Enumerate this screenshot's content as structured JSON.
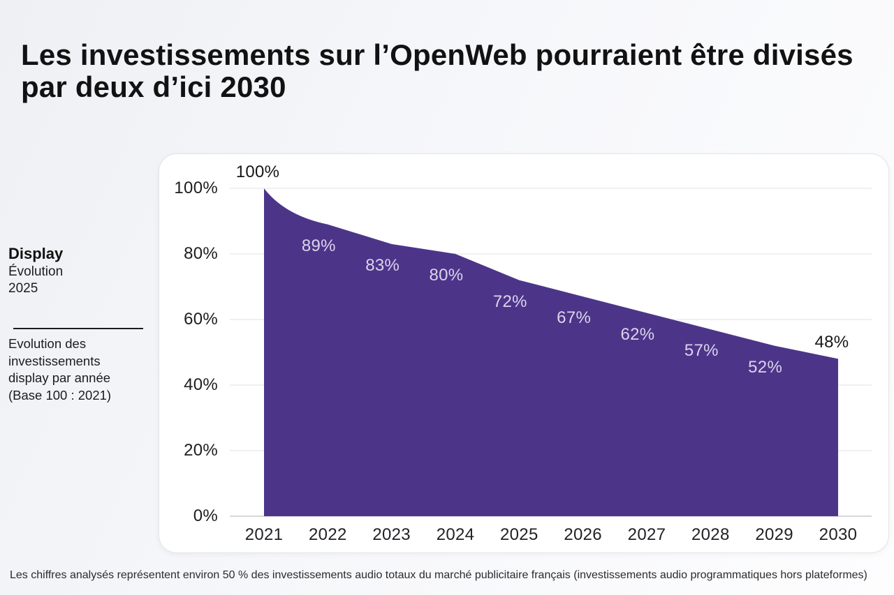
{
  "header": {
    "title": "Les investissements sur l’OpenWeb pourraient être divisés par deux d’ici 2030"
  },
  "sidebar": {
    "product": "Display",
    "subtitle_line1": "Évolution",
    "subtitle_line2": "2025",
    "description": "Evolution des investissements display par année (Base 100 : 2021)"
  },
  "chart_data": {
    "type": "area",
    "title": "",
    "categories": [
      "2021",
      "2022",
      "2023",
      "2024",
      "2025",
      "2026",
      "2027",
      "2028",
      "2029",
      "2030"
    ],
    "values": [
      100,
      89,
      83,
      80,
      72,
      67,
      62,
      57,
      52,
      48
    ],
    "data_labels": [
      "100%",
      "89%",
      "83%",
      "80%",
      "72%",
      "67%",
      "62%",
      "57%",
      "52%",
      "48%"
    ],
    "unit": "%",
    "xlabel": "",
    "ylabel": "",
    "ylim": [
      0,
      100
    ],
    "y_ticks": [
      100,
      80,
      60,
      40,
      20,
      0
    ],
    "y_tick_suffix": "%",
    "grid": true,
    "legend": "none",
    "area_color": "#4c3589",
    "gridline_color": "#ececf0",
    "baseline_color": "#d7d7dc",
    "label_color_inside": "#dcd4ec",
    "label_color_outside": "#161616"
  },
  "footer": {
    "note": "Les chiffres analysés représentent environ 50 % des investissements audio totaux du marché publicitaire français (investissements audio programmatiques hors plateformes)"
  }
}
